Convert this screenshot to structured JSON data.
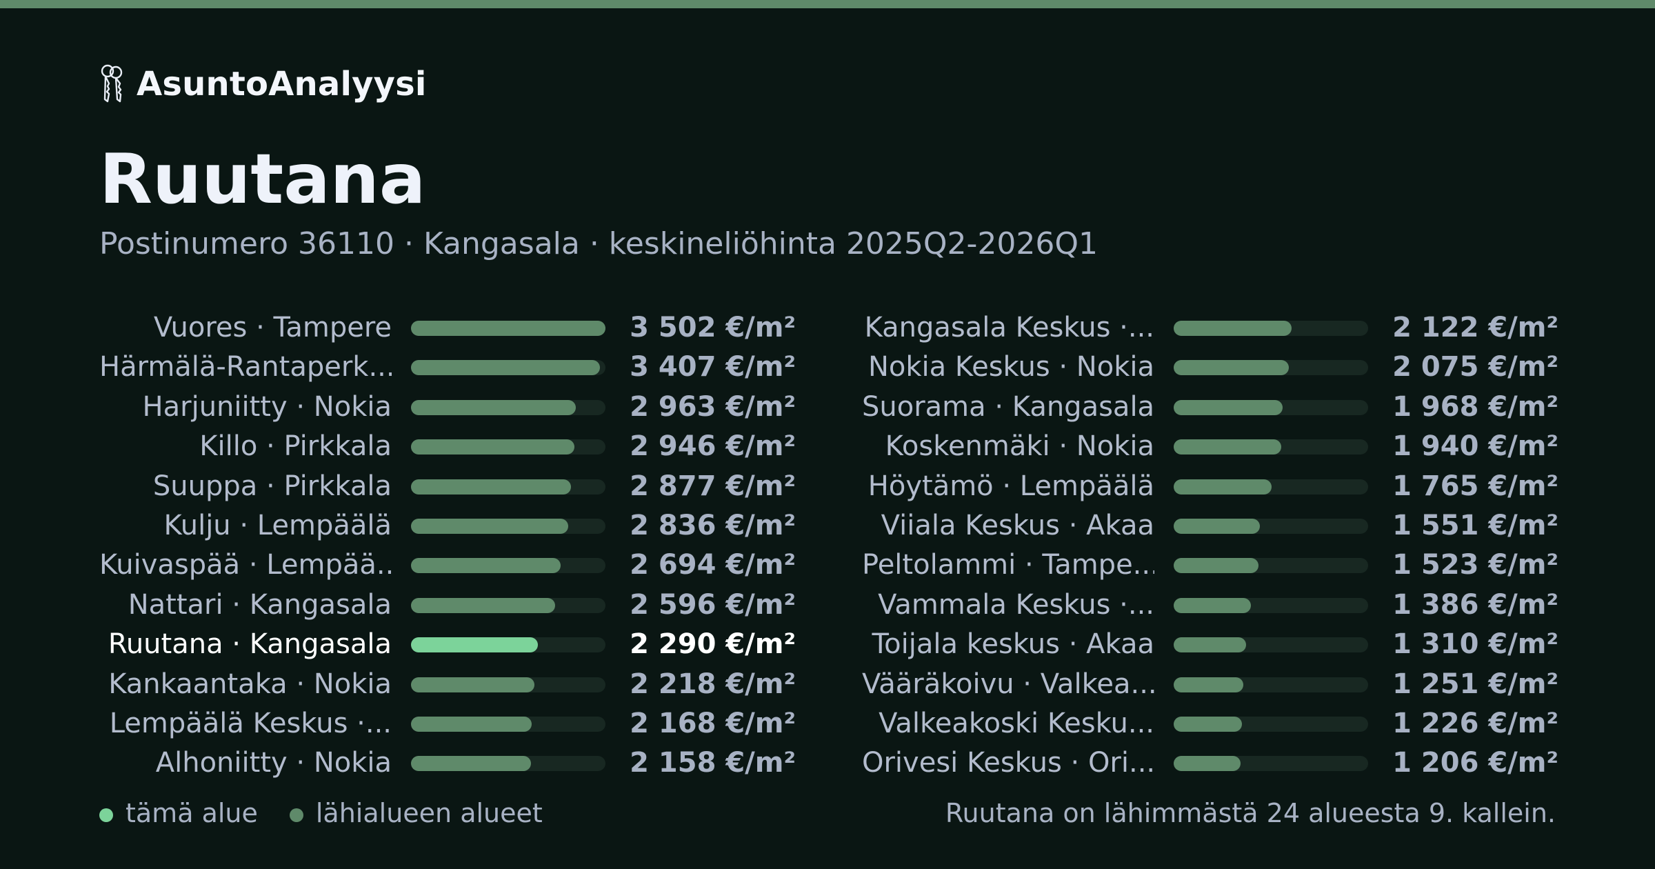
{
  "brand": {
    "name": "AsuntoAnalyysi",
    "icon": "keys-icon"
  },
  "title": "Ruutana",
  "subtitle": "Postinumero 36110 · Kangasala · keskineliöhinta 2025Q2-2026Q1",
  "colors": {
    "bar": "#5f8a6a",
    "current": "#7cd39a",
    "track": "#182822",
    "accent": "#5f8a6a"
  },
  "chart_data": {
    "type": "bar",
    "orientation": "horizontal",
    "unit": "€/m²",
    "xlim": [
      0,
      3502
    ],
    "current_index": 8,
    "items": [
      {
        "label": "Vuores · Tampere",
        "value": 3502,
        "value_label": "3 502 €/m²"
      },
      {
        "label": "Härmälä-Rantaperk...",
        "value": 3407,
        "value_label": "3 407 €/m²"
      },
      {
        "label": "Harjuniitty · Nokia",
        "value": 2963,
        "value_label": "2 963 €/m²"
      },
      {
        "label": "Killo · Pirkkala",
        "value": 2946,
        "value_label": "2 946 €/m²"
      },
      {
        "label": "Suuppa · Pirkkala",
        "value": 2877,
        "value_label": "2 877 €/m²"
      },
      {
        "label": "Kulju · Lempäälä",
        "value": 2836,
        "value_label": "2 836 €/m²"
      },
      {
        "label": "Kuivaspää · Lempää...",
        "value": 2694,
        "value_label": "2 694 €/m²"
      },
      {
        "label": "Nattari · Kangasala",
        "value": 2596,
        "value_label": "2 596 €/m²"
      },
      {
        "label": "Ruutana · Kangasala",
        "value": 2290,
        "value_label": "2 290 €/m²"
      },
      {
        "label": "Kankaantaka · Nokia",
        "value": 2218,
        "value_label": "2 218 €/m²"
      },
      {
        "label": "Lempäälä Keskus ·...",
        "value": 2168,
        "value_label": "2 168 €/m²"
      },
      {
        "label": "Alhoniitty · Nokia",
        "value": 2158,
        "value_label": "2 158 €/m²"
      },
      {
        "label": "Kangasala Keskus ·...",
        "value": 2122,
        "value_label": "2 122 €/m²"
      },
      {
        "label": "Nokia Keskus · Nokia",
        "value": 2075,
        "value_label": "2 075 €/m²"
      },
      {
        "label": "Suorama · Kangasala",
        "value": 1968,
        "value_label": "1 968 €/m²"
      },
      {
        "label": "Koskenmäki · Nokia",
        "value": 1940,
        "value_label": "1 940 €/m²"
      },
      {
        "label": "Höytämö · Lempäälä",
        "value": 1765,
        "value_label": "1 765 €/m²"
      },
      {
        "label": "Viiala Keskus · Akaa",
        "value": 1551,
        "value_label": "1 551 €/m²"
      },
      {
        "label": "Peltolammi · Tampe...",
        "value": 1523,
        "value_label": "1 523 €/m²"
      },
      {
        "label": "Vammala Keskus ·...",
        "value": 1386,
        "value_label": "1 386 €/m²"
      },
      {
        "label": "Toijala keskus · Akaa",
        "value": 1310,
        "value_label": "1 310 €/m²"
      },
      {
        "label": "Vääräkoivu · Valkea...",
        "value": 1251,
        "value_label": "1 251 €/m²"
      },
      {
        "label": "Valkeakoski Kesku...",
        "value": 1226,
        "value_label": "1 226 €/m²"
      },
      {
        "label": "Orivesi Keskus · Ori...",
        "value": 1206,
        "value_label": "1 206 €/m²"
      }
    ]
  },
  "legend": {
    "current": "tämä alue",
    "others": "lähialueen alueet"
  },
  "note": "Ruutana on lähimmästä 24 alueesta 9. kallein."
}
